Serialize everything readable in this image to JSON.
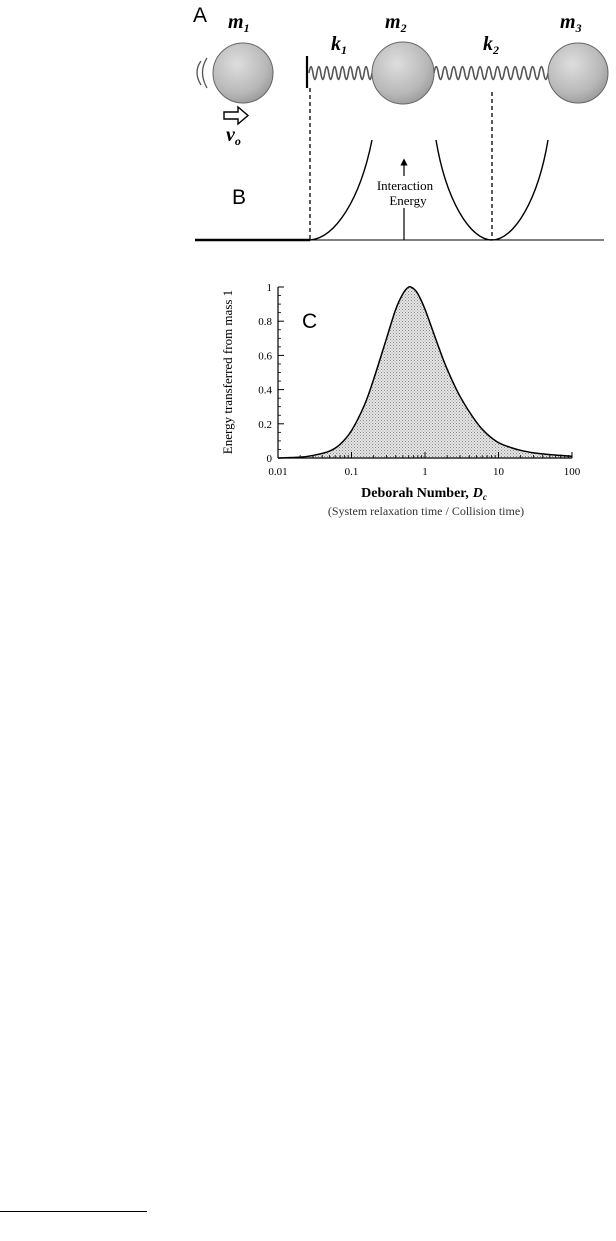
{
  "panel_a": {
    "label": "A",
    "masses": [
      {
        "symbol": "m",
        "subscript": "1"
      },
      {
        "symbol": "m",
        "subscript": "2"
      },
      {
        "symbol": "m",
        "subscript": "3"
      }
    ],
    "springs": [
      {
        "symbol": "k",
        "subscript": "1"
      },
      {
        "symbol": "k",
        "subscript": "2"
      }
    ],
    "velocity": {
      "symbol": "v",
      "subscript": "o"
    }
  },
  "panel_b": {
    "label": "B",
    "annotation_line1": "Interaction",
    "annotation_line2": "Energy"
  },
  "panel_c": {
    "label": "C",
    "ylabel": "Energy transferred from mass 1",
    "xlabel_main": "Deborah Number,",
    "xlabel_symbol": "D",
    "xlabel_subscript": "c",
    "xlabel_sub": "(System relaxation time / Collision time)",
    "y_ticks": [
      "0",
      "0.2",
      "0.4",
      "0.6",
      "0.8",
      "1"
    ],
    "x_ticks": [
      "0.01",
      "0.1",
      "1",
      "10",
      "100"
    ]
  },
  "colors": {
    "ink": "#000000",
    "mass_fill": "#b8b8b8",
    "curve_fill": "#cccccc",
    "spring": "#555555"
  },
  "chart_data": {
    "type": "area",
    "xscale": "log",
    "xlim": [
      0.01,
      100
    ],
    "ylim": [
      0,
      1
    ],
    "ylabel": "Energy transferred from mass 1",
    "xlabel": "Deborah Number, Dc (System relaxation time / Collision time)",
    "grid": false,
    "x": [
      0.01,
      0.02,
      0.03,
      0.05,
      0.07,
      0.1,
      0.15,
      0.2,
      0.3,
      0.4,
      0.5,
      0.6,
      0.7,
      0.8,
      1,
      1.5,
      2,
      3,
      5,
      7,
      10,
      15,
      20,
      30,
      50,
      70,
      100
    ],
    "y": [
      0.0,
      0.005,
      0.015,
      0.04,
      0.08,
      0.16,
      0.31,
      0.46,
      0.7,
      0.87,
      0.96,
      1.0,
      0.99,
      0.96,
      0.87,
      0.66,
      0.52,
      0.36,
      0.21,
      0.14,
      0.09,
      0.06,
      0.045,
      0.03,
      0.02,
      0.015,
      0.01
    ]
  }
}
